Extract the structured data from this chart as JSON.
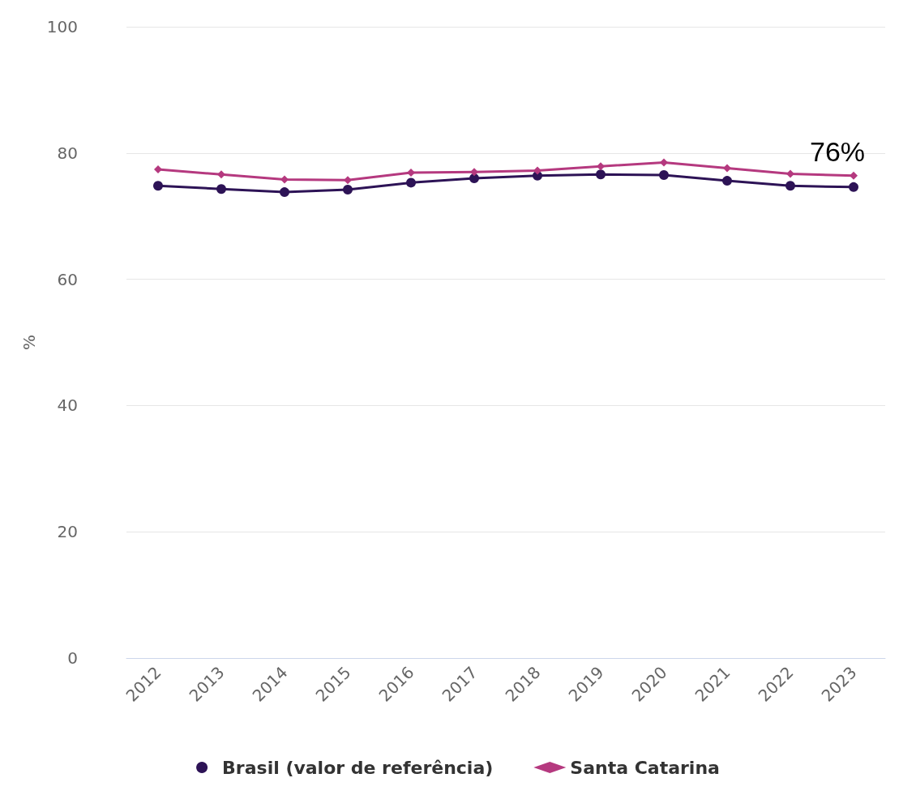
{
  "chart_data": {
    "type": "line",
    "ylabel": "%",
    "categories": [
      "2012",
      "2013",
      "2014",
      "2015",
      "2016",
      "2017",
      "2018",
      "2019",
      "2020",
      "2021",
      "2022",
      "2023"
    ],
    "series": [
      {
        "name": "Brasil (valor de referência)",
        "color": "#2d1356",
        "marker": "circle",
        "values": [
          74.8,
          74.3,
          73.8,
          74.2,
          75.3,
          76.0,
          76.4,
          76.6,
          76.5,
          75.6,
          74.8,
          74.6
        ]
      },
      {
        "name": "Santa Catarina",
        "color": "#b5397f",
        "marker": "diamond",
        "values": [
          77.4,
          76.6,
          75.8,
          75.7,
          76.9,
          77.0,
          77.2,
          77.9,
          78.5,
          77.6,
          76.7,
          76.4
        ]
      }
    ],
    "annotations": [
      {
        "text": "76%",
        "x": "2023",
        "y": 76.4
      }
    ],
    "ylim": [
      0,
      100
    ],
    "yticks": [
      0,
      20,
      40,
      60,
      80,
      100
    ],
    "grid": "y",
    "legend": "bottom"
  }
}
